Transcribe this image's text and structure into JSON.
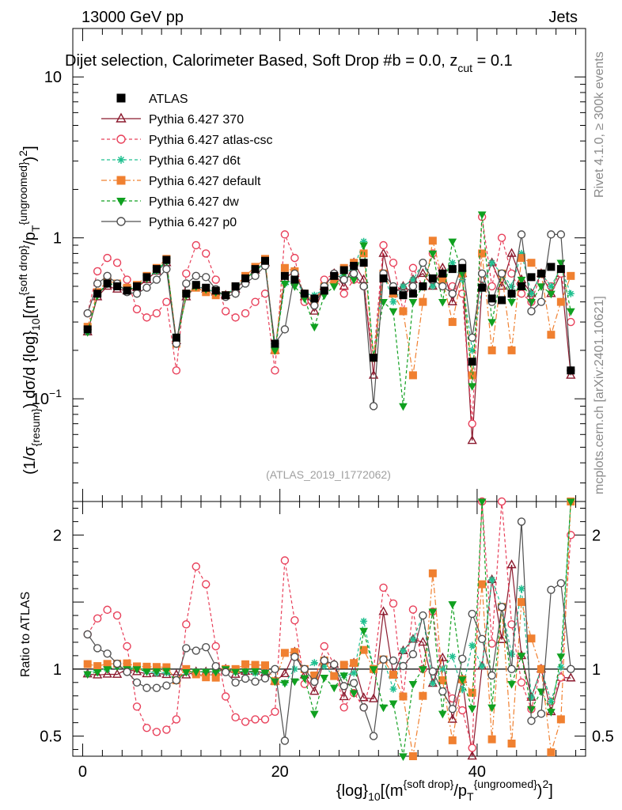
{
  "header": {
    "energy_label": "13000 GeV pp",
    "category_label": "Jets",
    "plot_title": "Dijet selection, Calorimeter Based, Soft Drop #b = 0.0, z_cut = 0.1",
    "plot_title_text": "Dijet selection, Calorimeter Based, Soft Drop #",
    "plot_title_beta": "b",
    "plot_title_eq": " = 0.0, z",
    "plot_title_sub": "cut",
    "plot_title_tail": " = 0.1"
  },
  "side": {
    "rivet": "Rivet 4.1.0, ≥ 300k events",
    "site": "mcplots.cern.ch [arXiv:2401.10621]"
  },
  "watermark": "(ATLAS_2019_I1772062)",
  "chart_data": [
    {
      "panel": "main",
      "type": "scatter",
      "title": "Dijet selection, Calorimeter Based, Soft Drop #b = 0.0, z_cut = 0.1",
      "xlabel": "{log}_10[(m^{soft drop}/p_T^{ungroomed})^2]",
      "ylabel": "(1/σ_{resum}) dσ/d {log}_10[(m^{soft drop}/p_T^{ungroomed})^2]",
      "yscale": "log",
      "xlim": [
        -1,
        51
      ],
      "ylim": [
        0.023,
        20
      ],
      "y_ticks": [
        {
          "value": 0.1,
          "label": "10^-1"
        },
        {
          "value": 1,
          "label": "1"
        },
        {
          "value": 10,
          "label": "10"
        }
      ],
      "x_ticks": [
        0,
        20,
        40
      ],
      "x": [
        0.5,
        1.5,
        2.5,
        3.5,
        4.5,
        5.5,
        6.5,
        7.5,
        8.5,
        9.5,
        10.5,
        11.5,
        12.5,
        13.5,
        14.5,
        15.5,
        16.5,
        17.5,
        18.5,
        19.5,
        20.5,
        21.5,
        22.5,
        23.5,
        24.5,
        25.5,
        26.5,
        27.5,
        28.5,
        29.5,
        30.5,
        31.5,
        32.5,
        33.5,
        34.5,
        35.5,
        36.5,
        37.5,
        38.5,
        39.5,
        40.5,
        41.5,
        42.5,
        43.5,
        44.5,
        45.5,
        46.5,
        47.5,
        48.5,
        49.5
      ],
      "series": [
        {
          "name": "ATLAS",
          "color": "#000000",
          "marker": "filled-square",
          "line": "none",
          "values": [
            0.27,
            0.45,
            0.52,
            0.5,
            0.47,
            0.5,
            0.57,
            0.64,
            0.73,
            0.24,
            0.45,
            0.51,
            0.49,
            0.47,
            0.44,
            0.5,
            0.56,
            0.64,
            0.72,
            0.22,
            0.58,
            0.55,
            0.45,
            0.42,
            0.47,
            0.58,
            0.63,
            0.67,
            0.7,
            0.18,
            0.56,
            0.47,
            0.44,
            0.45,
            0.5,
            0.56,
            0.6,
            0.64,
            0.65,
            0.17,
            0.49,
            0.42,
            0.41,
            0.45,
            0.5,
            0.57,
            0.6,
            0.66,
            0.64,
            0.15
          ]
        },
        {
          "name": "Pythia 6.427 370",
          "color": "#8b1a2e",
          "marker": "open-triangle",
          "line": "solid",
          "values": [
            0.26,
            0.43,
            0.5,
            0.48,
            0.47,
            0.49,
            0.55,
            0.62,
            0.7,
            0.23,
            0.43,
            0.5,
            0.48,
            0.46,
            0.44,
            0.48,
            0.55,
            0.63,
            0.7,
            0.2,
            0.56,
            0.62,
            0.43,
            0.35,
            0.5,
            0.6,
            0.5,
            0.7,
            0.55,
            0.14,
            0.8,
            0.45,
            0.5,
            0.55,
            0.6,
            0.5,
            0.65,
            0.4,
            0.6,
            0.055,
            0.5,
            0.7,
            0.5,
            0.8,
            0.55,
            0.45,
            0.6,
            0.45,
            0.6,
            0.14
          ]
        },
        {
          "name": "Pythia 6.427 atlas-csc",
          "color": "#e8405a",
          "marker": "open-circle",
          "line": "dashed",
          "values": [
            0.34,
            0.62,
            0.75,
            0.7,
            0.55,
            0.36,
            0.32,
            0.34,
            0.4,
            0.15,
            0.6,
            0.9,
            0.8,
            0.55,
            0.35,
            0.32,
            0.34,
            0.4,
            0.45,
            0.15,
            1.05,
            0.75,
            0.4,
            0.38,
            0.55,
            0.6,
            0.45,
            0.55,
            0.5,
            0.18,
            0.9,
            0.7,
            0.35,
            0.65,
            0.5,
            0.8,
            0.55,
            0.5,
            0.45,
            0.07,
            1.35,
            0.5,
            1.0,
            0.6,
            0.45,
            0.4,
            0.6,
            0.5,
            0.6,
            0.3
          ]
        },
        {
          "name": "Pythia 6.427 d6t",
          "color": "#20c090",
          "marker": "star",
          "line": "dashed",
          "values": [
            0.26,
            0.45,
            0.52,
            0.51,
            0.47,
            0.51,
            0.56,
            0.62,
            0.71,
            0.22,
            0.44,
            0.5,
            0.48,
            0.46,
            0.44,
            0.49,
            0.55,
            0.62,
            0.7,
            0.2,
            0.52,
            0.55,
            0.45,
            0.44,
            0.48,
            0.55,
            0.6,
            0.65,
            0.95,
            0.18,
            0.6,
            0.4,
            0.5,
            0.55,
            0.7,
            0.5,
            0.6,
            0.7,
            0.55,
            0.2,
            0.5,
            0.7,
            0.6,
            0.5,
            0.8,
            0.45,
            0.6,
            0.5,
            0.65,
            0.45
          ]
        },
        {
          "name": "Pythia 6.427 default",
          "color": "#f08030",
          "marker": "filled-square",
          "line": "dashdot",
          "values": [
            0.28,
            0.46,
            0.54,
            0.52,
            0.49,
            0.51,
            0.58,
            0.65,
            0.74,
            0.22,
            0.45,
            0.49,
            0.46,
            0.44,
            0.44,
            0.5,
            0.58,
            0.66,
            0.74,
            0.2,
            0.65,
            0.62,
            0.45,
            0.4,
            0.5,
            0.55,
            0.65,
            0.7,
            0.8,
            0.18,
            0.6,
            0.45,
            0.35,
            0.14,
            0.4,
            0.96,
            0.55,
            0.3,
            0.6,
            0.14,
            0.8,
            0.2,
            0.6,
            0.2,
            0.75,
            0.7,
            0.6,
            0.25,
            0.4,
            0.58
          ]
        },
        {
          "name": "Pythia 6.427 dw",
          "color": "#10a020",
          "marker": "filled-triangle-down",
          "line": "dashed",
          "values": [
            0.26,
            0.44,
            0.52,
            0.51,
            0.47,
            0.5,
            0.56,
            0.63,
            0.72,
            0.22,
            0.44,
            0.5,
            0.48,
            0.46,
            0.44,
            0.49,
            0.55,
            0.63,
            0.7,
            0.2,
            0.52,
            0.5,
            0.42,
            0.28,
            0.44,
            0.5,
            0.6,
            0.55,
            0.9,
            0.18,
            0.4,
            0.35,
            0.09,
            0.4,
            0.5,
            0.8,
            0.4,
            0.95,
            0.6,
            0.12,
            1.4,
            0.3,
            0.6,
            0.4,
            0.55,
            0.4,
            0.5,
            0.45,
            0.7,
            0.35
          ]
        },
        {
          "name": "Pythia 6.427 p0",
          "color": "#505050",
          "marker": "open-circle",
          "line": "solid",
          "values": [
            0.34,
            0.52,
            0.58,
            0.52,
            0.46,
            0.45,
            0.49,
            0.55,
            0.64,
            0.22,
            0.52,
            0.58,
            0.57,
            0.48,
            0.43,
            0.45,
            0.52,
            0.58,
            0.67,
            0.22,
            0.27,
            0.6,
            0.45,
            0.38,
            0.5,
            0.6,
            0.55,
            0.6,
            0.5,
            0.09,
            0.6,
            0.5,
            0.45,
            0.5,
            0.7,
            0.55,
            0.5,
            0.45,
            0.7,
            0.24,
            0.6,
            0.4,
            0.6,
            0.45,
            1.05,
            0.35,
            0.4,
            1.05,
            1.05,
            0.15
          ]
        }
      ],
      "legend": [
        "ATLAS",
        "Pythia 6.427 370",
        "Pythia 6.427 atlas-csc",
        "Pythia 6.427 d6t",
        "Pythia 6.427 default",
        "Pythia 6.427 dw",
        "Pythia 6.427 p0"
      ],
      "legend_position": "top-left"
    },
    {
      "panel": "ratio",
      "type": "scatter",
      "ylabel": "Ratio to ATLAS",
      "xlabel": "{log}_10[(m^{soft drop}/p_T^{ungroomed})^2]",
      "ylim": [
        0.35,
        2.25
      ],
      "y_ticks": [
        0.5,
        1,
        2
      ],
      "x_ticks": [
        0,
        20,
        40
      ],
      "reference_line": 1
    }
  ],
  "axis_labels": {
    "y_main": "(1/σ",
    "y_main_sub1": "{resum}",
    "y_main_mid": ") dσ/d {log}",
    "y_main_sub2": "10",
    "y_main_mid2": "[(m",
    "y_main_sup1": "{soft drop}",
    "y_main_mid3": "/p",
    "y_main_sub3": "T",
    "y_main_sup2": "{ungroomed}",
    "y_main_end": ")",
    "y_main_sup3": "2",
    "y_main_close": "]",
    "y_ratio": "Ratio to ATLAS",
    "x_a": "{log}",
    "x_sub1": "10",
    "x_b": "[(m",
    "x_sup1": "{soft drop}",
    "x_c": "/p",
    "x_sub2": "T",
    "x_sup2": "{ungroomed}",
    "x_d": ")",
    "x_sup3": "2",
    "x_e": "]"
  }
}
